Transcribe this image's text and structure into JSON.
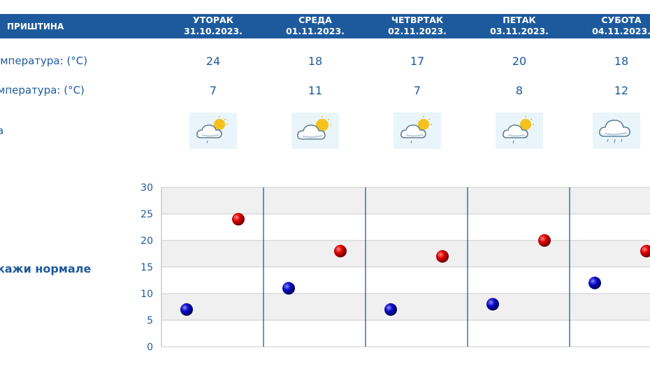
{
  "header": {
    "city": "ПРИШТИНА",
    "days": [
      {
        "name": "УТОРАК",
        "date": "31.10.2023."
      },
      {
        "name": "СРЕДА",
        "date": "01.11.2023."
      },
      {
        "name": "ЧЕТВРТАК",
        "date": "02.11.2023."
      },
      {
        "name": "ПЕТАК",
        "date": "03.11.2023."
      },
      {
        "name": "СУБОТА",
        "date": "04.11.2023."
      }
    ]
  },
  "rows": {
    "max_label": "емпература: (°C)",
    "min_label": "мпература: (°C)",
    "weather_label": "а",
    "max": [
      "24",
      "18",
      "17",
      "20",
      "18"
    ],
    "min": [
      "7",
      "11",
      "7",
      "8",
      "12"
    ],
    "icons": [
      "partly-cloudy-rain-icon",
      "partly-cloudy-icon",
      "partly-cloudy-rain-icon",
      "partly-cloudy-rain-icon",
      "cloud-rain-icon"
    ]
  },
  "normals_link": "кажи нормале",
  "colors": {
    "header_bg": "#1d5a9d",
    "text": "#1d5a9d",
    "max_marker": "#d40000",
    "min_marker": "#0a0ab4",
    "band": "#f0f0f0"
  },
  "chart_data": {
    "type": "scatter",
    "categories": [
      "31.10.2023.",
      "01.11.2023.",
      "02.11.2023.",
      "03.11.2023.",
      "04.11.2023."
    ],
    "series": [
      {
        "values": [
          7,
          11,
          7,
          8,
          12
        ],
        "color": "#0a0ab4"
      },
      {
        "values": [
          24,
          18,
          17,
          20,
          18
        ],
        "color": "#d40000"
      }
    ],
    "yticks": [
      0,
      5,
      10,
      15,
      20,
      25,
      30
    ],
    "ylim": [
      0,
      30
    ],
    "grid": true,
    "xlabel": "",
    "ylabel": "",
    "title": ""
  }
}
